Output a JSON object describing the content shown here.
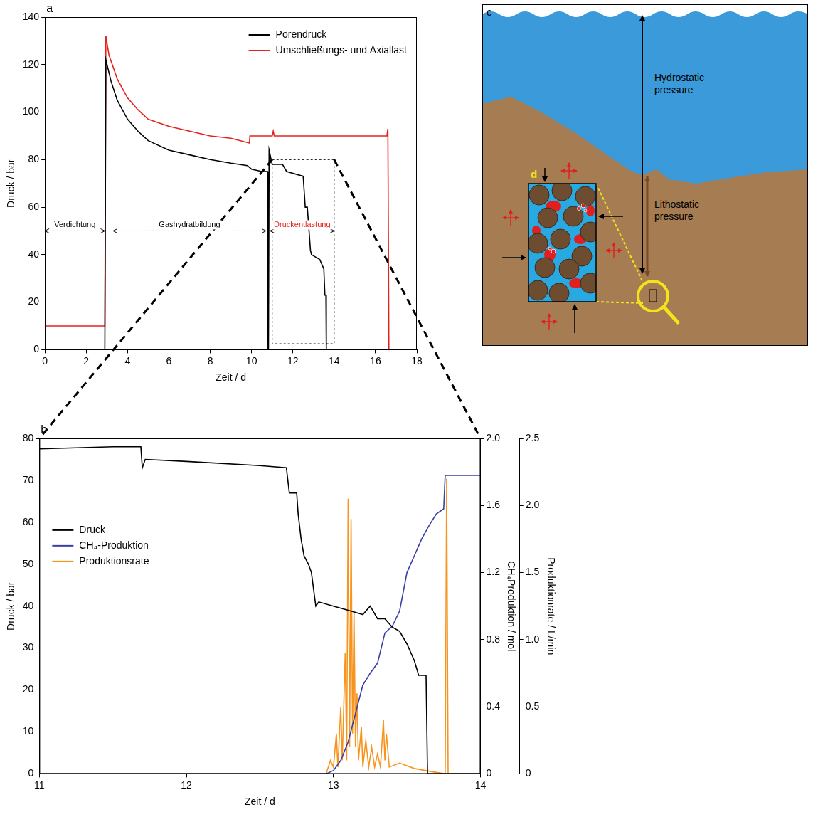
{
  "chart_data": [
    {
      "type": "line",
      "panel": "a",
      "xlabel": "Zeit / d",
      "ylabel": "Druck / bar",
      "xlim": [
        0,
        18
      ],
      "xticks": [
        0,
        2,
        4,
        6,
        8,
        10,
        12,
        14,
        16,
        18
      ],
      "ylim": [
        0,
        140
      ],
      "yticks": [
        0,
        20,
        40,
        60,
        80,
        100,
        120,
        140
      ],
      "grid": false,
      "legend": "upper right",
      "series": [
        {
          "name": "Porendruck",
          "color": "#000000",
          "x": [
            0,
            2.9,
            2.95,
            3.2,
            3.5,
            4,
            4.5,
            5,
            6,
            7,
            8,
            9,
            9.8,
            10,
            10.5,
            10.78,
            10.8,
            10.82,
            10.85,
            11,
            11.5,
            11.7,
            12.5,
            12.6,
            12.7,
            12.85,
            12.9,
            13.3,
            13.5,
            13.55,
            13.6,
            13.62,
            18
          ],
          "values": [
            0,
            0,
            122,
            113,
            105,
            97,
            92,
            88,
            84,
            82,
            80,
            78.5,
            77.5,
            76,
            75,
            75,
            0,
            0,
            84,
            78,
            78,
            75,
            73,
            60,
            60,
            42,
            40,
            38,
            34,
            23,
            23,
            0,
            0
          ]
        },
        {
          "name": "Umschließungs- und Axiallast",
          "color": "#e3231b",
          "x": [
            0,
            2.9,
            2.95,
            3.1,
            3.5,
            4,
            4.5,
            5,
            6,
            7,
            8,
            9,
            9.9,
            9.92,
            11,
            11.05,
            11.1,
            16.55,
            16.6,
            16.65
          ],
          "values": [
            10,
            10,
            132,
            124,
            114,
            106,
            101,
            97,
            94,
            92,
            90,
            89,
            87,
            90,
            90,
            92,
            90,
            90,
            93,
            0
          ]
        }
      ],
      "annotations": [
        {
          "text": "Verdichtung",
          "x": [
            0,
            2.9
          ],
          "y": 50,
          "color": "#000000"
        },
        {
          "text": "Gashydratbildung",
          "x": [
            3.3,
            10.7
          ],
          "y": 50,
          "color": "#000000"
        },
        {
          "text": "Druckentlastung",
          "x": [
            10.9,
            14
          ],
          "y": 50,
          "color": "#e3231b"
        }
      ],
      "zoom_box": {
        "x": [
          11,
          14
        ],
        "y": [
          2.5,
          80
        ]
      }
    },
    {
      "type": "line",
      "panel": "b",
      "xlabel": "Zeit / d",
      "ylabel": "Druck / bar",
      "y2label": "CH₄Produktion / mol",
      "y3label": "Produktionrate / L/min",
      "xlim": [
        11,
        14
      ],
      "xticks": [
        11,
        12,
        13,
        14
      ],
      "ylim": [
        0,
        80
      ],
      "yticks": [
        0,
        10,
        20,
        30,
        40,
        50,
        60,
        70,
        80
      ],
      "y2lim": [
        0,
        2
      ],
      "y2ticks": [
        0,
        0.4,
        0.8,
        1.2,
        1.6,
        {
          "value": 2,
          "label": "2.0"
        }
      ],
      "y3lim": [
        0,
        2.5
      ],
      "y3ticks": [
        0,
        0.5,
        {
          "value": 1,
          "label": "1.0"
        },
        1.5,
        {
          "value": 2,
          "label": "2.0"
        },
        2.5
      ],
      "grid": false,
      "legend": "center left",
      "series": [
        {
          "name": "Druck",
          "color": "#000000",
          "axis": "y",
          "x": [
            11,
            11.5,
            11.69,
            11.7,
            11.72,
            12,
            12.5,
            12.68,
            12.7,
            12.75,
            12.76,
            12.78,
            12.8,
            12.83,
            12.85,
            12.88,
            12.9,
            13.0,
            13.1,
            13.2,
            13.25,
            13.3,
            13.35,
            13.4,
            13.45,
            13.5,
            13.55,
            13.58,
            13.63,
            13.64,
            14
          ],
          "values": [
            77.5,
            78,
            78,
            73,
            75,
            74.5,
            73.5,
            73,
            67,
            67,
            62,
            56,
            52,
            50,
            48,
            40,
            41,
            40,
            39,
            38,
            40,
            37,
            37,
            35,
            34,
            31,
            27,
            23.5,
            23.5,
            0,
            0
          ]
        },
        {
          "name": "CH₄-Produktion",
          "color": "#3b3fa6",
          "axis": "y2",
          "x": [
            11,
            12.95,
            13.0,
            13.05,
            13.1,
            13.15,
            13.2,
            13.25,
            13.3,
            13.35,
            13.4,
            13.45,
            13.5,
            13.55,
            13.6,
            13.65,
            13.7,
            13.75,
            13.76,
            14
          ],
          "values": [
            0,
            0,
            0.02,
            0.08,
            0.19,
            0.36,
            0.53,
            0.6,
            0.66,
            0.84,
            0.88,
            0.97,
            1.2,
            1.3,
            1.4,
            1.48,
            1.55,
            1.58,
            1.78,
            1.78
          ]
        },
        {
          "name": "Produktionsrate",
          "color": "#f7941d",
          "axis": "y3",
          "x": [
            11,
            12.95,
            12.98,
            13.0,
            13.02,
            13.03,
            13.05,
            13.06,
            13.08,
            13.09,
            13.1,
            13.11,
            13.12,
            13.13,
            13.14,
            13.15,
            13.16,
            13.17,
            13.19,
            13.2,
            13.22,
            13.24,
            13.26,
            13.28,
            13.3,
            13.32,
            13.34,
            13.35,
            13.36,
            13.38,
            13.45,
            13.55,
            13.65,
            13.76,
            13.77,
            13.78,
            14
          ],
          "values": [
            0,
            0,
            0.1,
            0.05,
            0.3,
            0.05,
            0.5,
            0.1,
            0.9,
            0.1,
            2.05,
            0.2,
            1.9,
            0.3,
            1.2,
            0.2,
            0.6,
            0.1,
            0.35,
            0.05,
            0.25,
            0.05,
            0.2,
            0.05,
            0.15,
            0.05,
            0.4,
            0.1,
            0.3,
            0.05,
            0.08,
            0.04,
            0.02,
            0,
            2.2,
            0,
            0
          ]
        }
      ]
    }
  ],
  "diagram": {
    "panel": "c",
    "inset": "d",
    "hydrostatic": "Hydrostatic pressure",
    "lithostatic": "Lithostatic pressure"
  }
}
